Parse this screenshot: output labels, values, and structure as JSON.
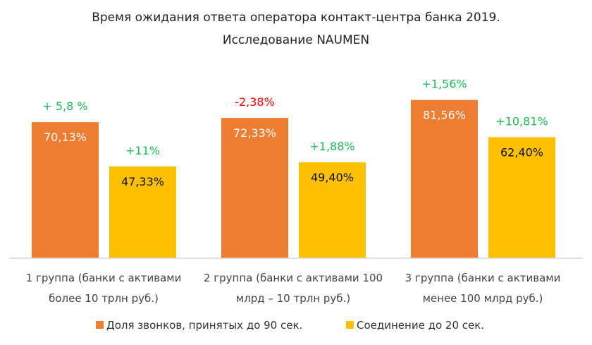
{
  "chart_data": {
    "type": "bar",
    "title": [
      "Время ожидания ответа оператора контакт-центра банка 2019.",
      "Исследование NAUMEN"
    ],
    "categories": [
      [
        "1 группа (банки с активами",
        "более 10 трлн руб.)"
      ],
      [
        "2 группа (банки с активами 100",
        "млрд – 10 трлн руб.)"
      ],
      [
        "3 группа (банки с активами",
        "менее 100 млрд руб.)"
      ]
    ],
    "series": [
      {
        "name": "Доля звонков, принятых до 90 сек.",
        "color": "#ED7D31",
        "label_color": "#ffffff",
        "values": [
          70.13,
          72.33,
          81.56
        ],
        "labels": [
          "70,13%",
          "72,33%",
          "81,56%"
        ],
        "changes": [
          "+ 5,8 %",
          "-2,38%",
          "+1,56%"
        ],
        "change_colors": [
          "#1DB954",
          "#FF0000",
          "#1DB954"
        ]
      },
      {
        "name": "Соединение до 20 сек.",
        "color": "#FFC000",
        "label_color": "#111111",
        "values": [
          47.33,
          49.4,
          62.4
        ],
        "labels": [
          "47,33%",
          "49,40%",
          "62,40%"
        ],
        "changes": [
          "+11%",
          "+1,88%",
          "+10,81%"
        ],
        "change_colors": [
          "#1DB954",
          "#1DB954",
          "#1DB954"
        ]
      }
    ],
    "xlabel": "",
    "ylabel": "",
    "ylim": [
      0,
      100
    ],
    "grid": false,
    "legend": "bottom"
  }
}
